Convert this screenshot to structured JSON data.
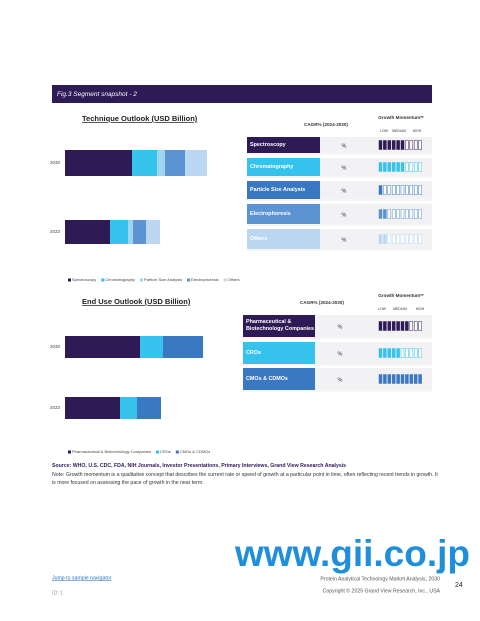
{
  "header": {
    "title": "Fig.3  Segment snapshot - 2"
  },
  "technique_outlook": {
    "title": "Technique Outlook (USD Billion)",
    "categories": [
      "2030",
      "2023"
    ],
    "series": [
      {
        "name": "Spectroscopy",
        "color": "#2e1a55",
        "values": [
          6.7,
          4.5
        ]
      },
      {
        "name": "Chromatography",
        "color": "#35c2ec",
        "values": [
          2.5,
          1.8
        ]
      },
      {
        "name": "Particle Size Analysis",
        "color": "#9fd3f2",
        "values": [
          0.8,
          0.5
        ]
      },
      {
        "name": "Electrophoresis",
        "color": "#5b93d3",
        "values": [
          2.0,
          1.3
        ]
      },
      {
        "name": "Others",
        "color": "#bcd7f1",
        "values": [
          2.2,
          1.4
        ]
      }
    ]
  },
  "technique_table": {
    "cagr_header": "CAGR% (2024-2030)",
    "momentum_header": "Growth Momentum**",
    "levels": [
      "LOW",
      "MEDIUM",
      "HIGH"
    ],
    "rows": [
      {
        "segment": "Spectroscopy",
        "cagr": "%",
        "momentum": 6,
        "color": "#2e1a55"
      },
      {
        "segment": "Chromatography",
        "cagr": "%",
        "momentum": 6,
        "color": "#35c2ec"
      },
      {
        "segment": "Particle Size Analysis",
        "cagr": "%",
        "momentum": 1,
        "color": "#3b78c2"
      },
      {
        "segment": "Electrophoresis",
        "cagr": "%",
        "momentum": 2,
        "color": "#5b93d3"
      },
      {
        "segment": "Others",
        "cagr": "%",
        "momentum": 2,
        "color": "#bcd7f1"
      }
    ]
  },
  "end_use_outlook": {
    "title": "End Use Outlook (USD Billion)",
    "categories": [
      "2030",
      "2023"
    ],
    "series": [
      {
        "name": "Pharmaceutical & Biotechnology Companies",
        "color": "#2e1a55",
        "values": [
          7.5,
          5.5
        ]
      },
      {
        "name": "CROs",
        "color": "#35c2ec",
        "values": [
          2.3,
          1.7
        ]
      },
      {
        "name": "CMOs & CDMOs",
        "color": "#3b78c2",
        "values": [
          4.0,
          2.4
        ]
      }
    ]
  },
  "end_use_table": {
    "cagr_header": "CAGR% (2024-2030)",
    "momentum_header": "Growth Momentum**",
    "levels": [
      "LOW",
      "MEDIUM",
      "HIGH"
    ],
    "rows": [
      {
        "segment": "Pharmaceutical & Biotechnology Companies",
        "cagr": "%",
        "momentum": 7,
        "color": "#2e1a55"
      },
      {
        "segment": "CROs",
        "cagr": "%",
        "momentum": 5,
        "color": "#35c2ec"
      },
      {
        "segment": "CMOs & CDMOs",
        "cagr": "%",
        "momentum": 10,
        "color": "#3b78c2"
      }
    ]
  },
  "source": "Source: WHO, U.S. CDC, FDA, NIH Journals, Investor Presentations, Primary Interviews, Grand View Research Analysis",
  "note": "Note: Growth momentum is a qualitative concept that describes the current rate or speed of growth at a particular point in time, often reflecting recent trends in growth. It is more focused on assessing the pace of growth in the near term.",
  "watermark": "www.gii.co.jp",
  "footer": {
    "link": "Jump to sample navigator",
    "id": "ID: 1",
    "report": "Protein Analytical Technology Market Analysis, 2030",
    "copyright": "Copyright © 2025 Grand View Research, Inc., USA",
    "page": "24"
  }
}
